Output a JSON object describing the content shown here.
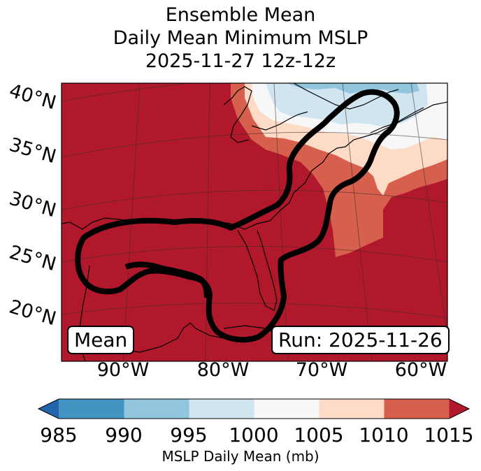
{
  "title": {
    "line1": "Ensemble Mean",
    "line2": "Daily Mean Minimum MSLP",
    "line3": "2025-11-27 12z-12z"
  },
  "map": {
    "lat_labels": [
      "40°N",
      "35°N",
      "30°N",
      "25°N",
      "20°N"
    ],
    "lon_labels": [
      "90°W",
      "80°W",
      "70°W",
      "60°W"
    ],
    "mean_label": "Mean",
    "run_label": "Run: 2025-11-26",
    "contour_description": "ensemble spread outline"
  },
  "colorbar": {
    "label": "MSLP Daily Mean (mb)",
    "ticks": [
      "985",
      "990",
      "995",
      "1000",
      "1005",
      "1010",
      "1015"
    ],
    "colors": [
      "#2166ac",
      "#4393c3",
      "#92c5de",
      "#d1e5f0",
      "#f7f7f7",
      "#fddbc7",
      "#d6604d",
      "#b2182b"
    ]
  }
}
